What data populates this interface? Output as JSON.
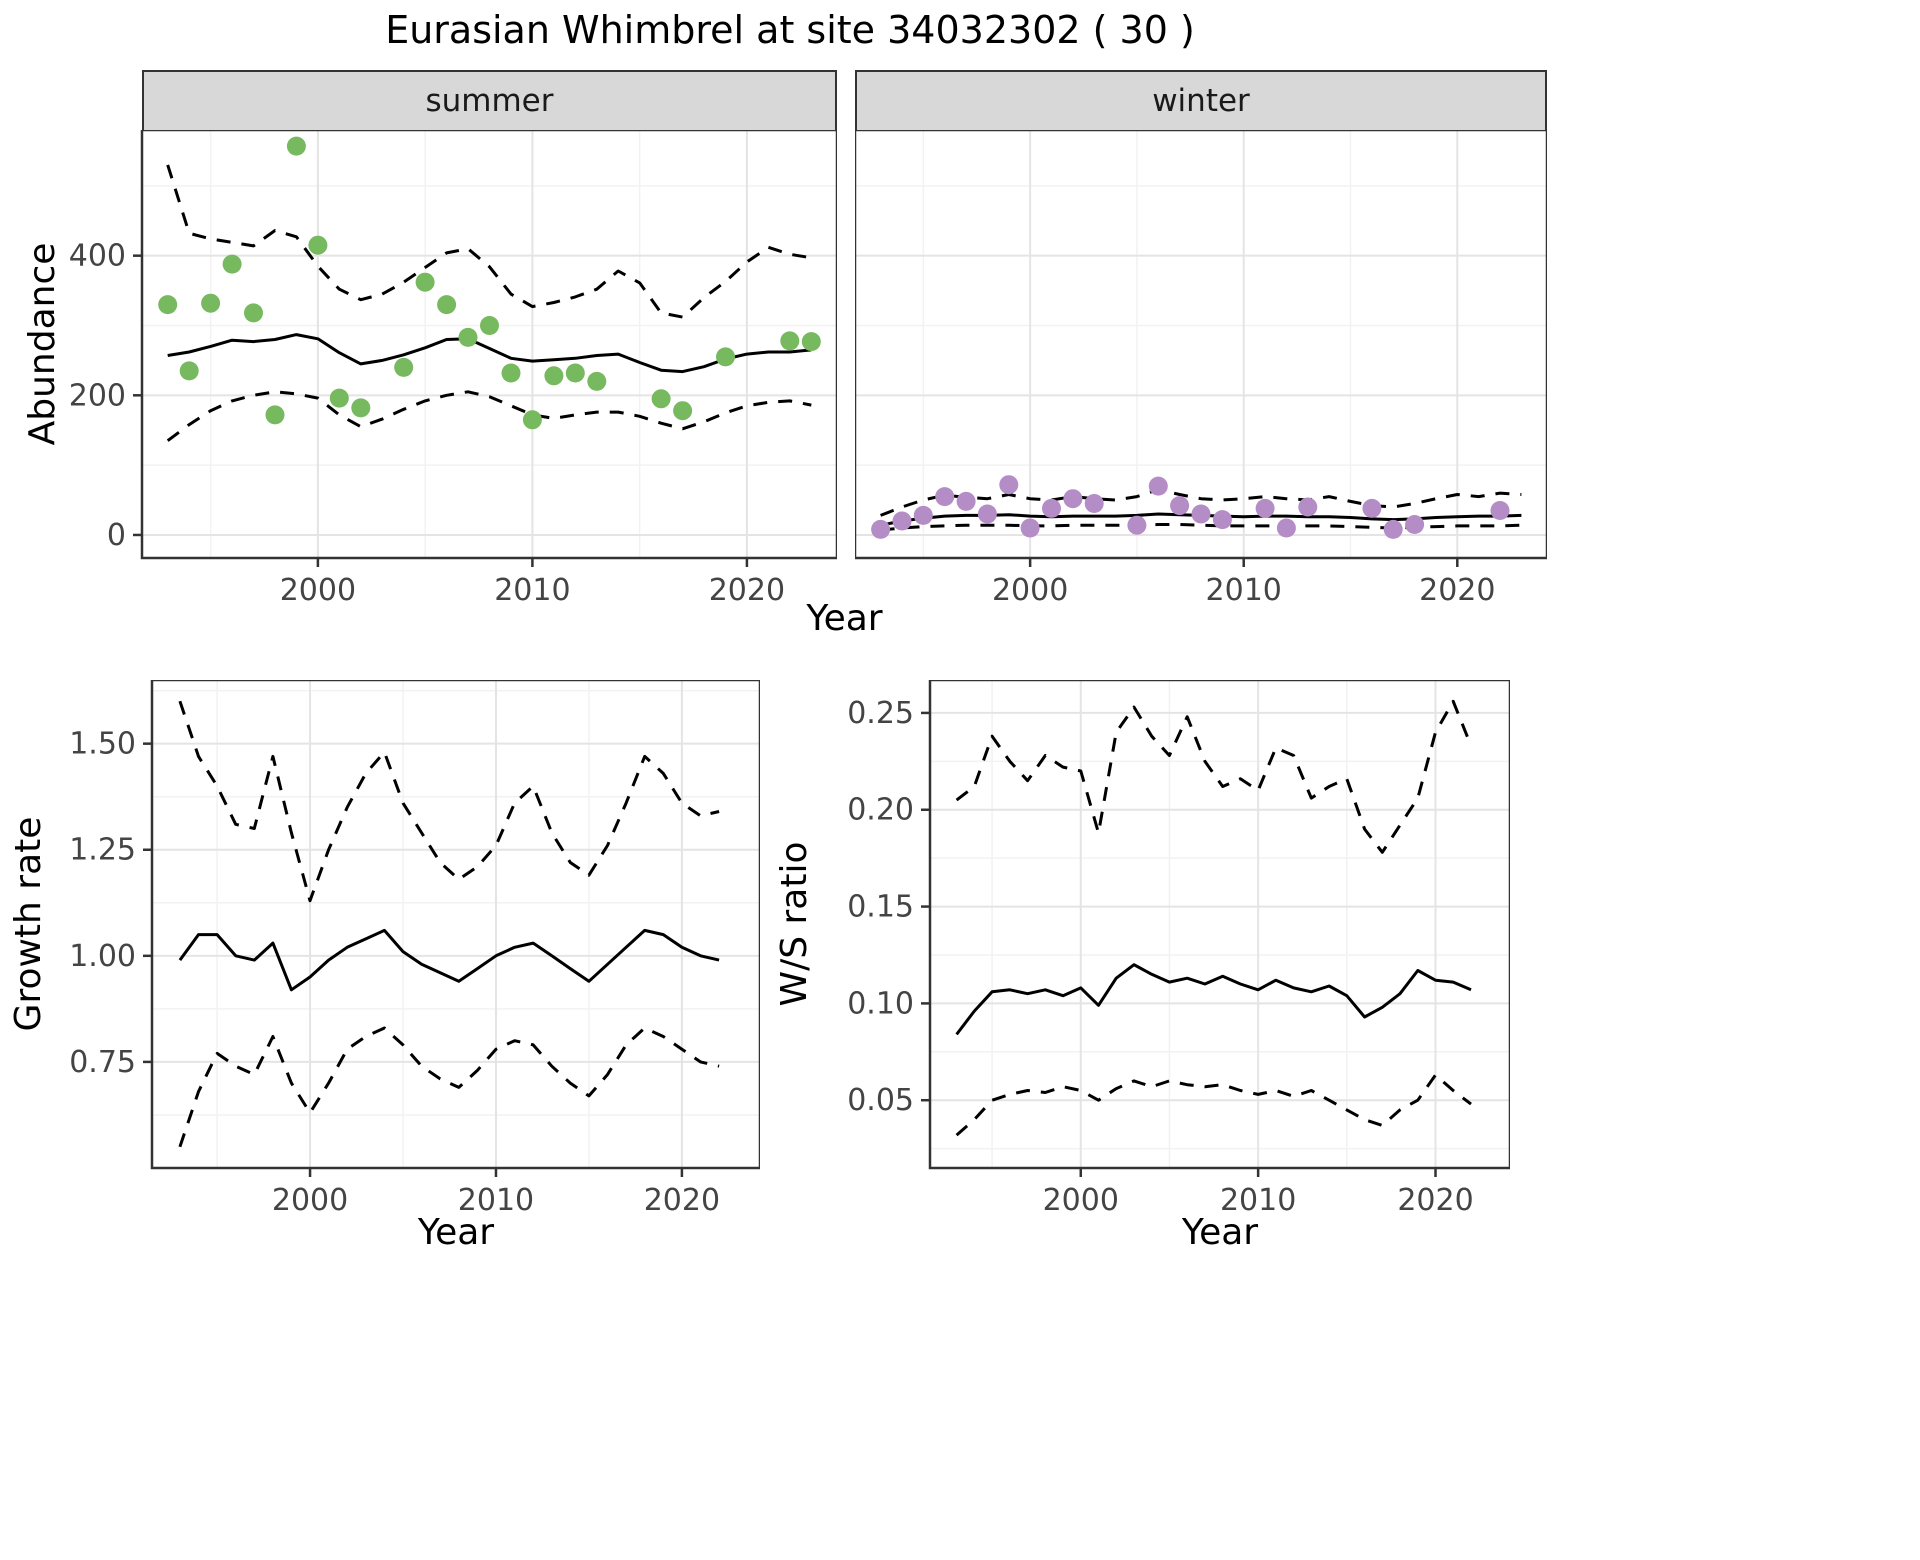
{
  "title": "Eurasian Whimbrel at site 34032302 ( 30 )",
  "colors": {
    "summer_points": "#77b95e",
    "winter_points": "#b48cc6",
    "trend_line": "#000000",
    "ci_line": "#000000",
    "strip_bg": "#d8d8d8",
    "grid_major": "#e4e4e4",
    "grid_minor": "#f2f2f2",
    "panel_border": "#333333",
    "axis_text": "#444444"
  },
  "chart_data": [
    {
      "id": "abundance-summer",
      "type": "line",
      "facet_label": "summer",
      "ylabel": "Abundance",
      "xlabel": "Year",
      "xlim": [
        1991.8,
        2024.2
      ],
      "ylim": [
        -33,
        580
      ],
      "xticks": [
        2000,
        2010,
        2020
      ],
      "xtick_labels": [
        "2000",
        "2010",
        "2020"
      ],
      "yticks": [
        0,
        200,
        400
      ],
      "ytick_labels": [
        "0",
        "200",
        "400"
      ],
      "points": {
        "name": "summer-observed",
        "color": "#77b95e",
        "x": [
          1993,
          1994,
          1995,
          1996,
          1997,
          1998,
          1999,
          2000,
          2001,
          2002,
          2004,
          2005,
          2006,
          2007,
          2008,
          2009,
          2010,
          2011,
          2012,
          2013,
          2016,
          2017,
          2019,
          2022,
          2023
        ],
        "y": [
          330,
          235,
          332,
          388,
          318,
          172,
          557,
          415,
          196,
          182,
          240,
          362,
          330,
          283,
          300,
          232,
          165,
          228,
          232,
          220,
          195,
          178,
          255,
          278,
          277
        ]
      },
      "series": [
        {
          "name": "trend",
          "dash": false,
          "x_start": 1993,
          "values": [
            257,
            262,
            270,
            279,
            277,
            280,
            287,
            281,
            261,
            245,
            250,
            258,
            268,
            280,
            281,
            267,
            253,
            249,
            251,
            253,
            257,
            259,
            247,
            236,
            234,
            241,
            252,
            259,
            262,
            262,
            265
          ]
        },
        {
          "name": "ci-upper",
          "dash": true,
          "x_start": 1993,
          "values": [
            530,
            432,
            424,
            419,
            414,
            436,
            427,
            385,
            352,
            337,
            345,
            362,
            383,
            404,
            410,
            384,
            345,
            327,
            333,
            341,
            352,
            378,
            361,
            318,
            312,
            340,
            363,
            391,
            412,
            402,
            397
          ]
        },
        {
          "name": "ci-lower",
          "dash": true,
          "x_start": 1993,
          "values": [
            135,
            158,
            178,
            192,
            200,
            205,
            202,
            196,
            172,
            155,
            166,
            180,
            192,
            200,
            205,
            198,
            185,
            172,
            167,
            172,
            176,
            176,
            170,
            160,
            152,
            162,
            175,
            185,
            190,
            192,
            186
          ]
        }
      ]
    },
    {
      "id": "abundance-winter",
      "type": "line",
      "facet_label": "winter",
      "xlim": [
        1991.8,
        2024.2
      ],
      "ylim": [
        -33,
        580
      ],
      "xticks": [
        2000,
        2010,
        2020
      ],
      "xtick_labels": [
        "2000",
        "2010",
        "2020"
      ],
      "yticks": [
        0,
        200,
        400
      ],
      "ytick_labels": [],
      "points": {
        "name": "winter-observed",
        "color": "#b48cc6",
        "x": [
          1993,
          1994,
          1995,
          1996,
          1997,
          1998,
          1999,
          2000,
          2001,
          2002,
          2003,
          2005,
          2006,
          2007,
          2008,
          2009,
          2011,
          2012,
          2013,
          2016,
          2017,
          2018,
          2022
        ],
        "y": [
          8,
          20,
          28,
          55,
          48,
          30,
          72,
          10,
          38,
          52,
          45,
          14,
          70,
          42,
          30,
          22,
          38,
          10,
          40,
          38,
          8,
          15,
          35
        ]
      },
      "series": [
        {
          "name": "trend",
          "dash": false,
          "x_start": 1993,
          "values": [
            14,
            20,
            24,
            27,
            28,
            28,
            29,
            27,
            26,
            27,
            27,
            27,
            28,
            30,
            29,
            28,
            27,
            26,
            27,
            27,
            26,
            26,
            25,
            23,
            22,
            23,
            25,
            26,
            27,
            27,
            28
          ]
        },
        {
          "name": "ci-upper",
          "dash": true,
          "x_start": 1993,
          "values": [
            28,
            40,
            50,
            57,
            54,
            52,
            58,
            52,
            50,
            55,
            52,
            50,
            55,
            65,
            58,
            52,
            50,
            52,
            55,
            52,
            50,
            55,
            48,
            42,
            40,
            45,
            52,
            58,
            55,
            60,
            58
          ]
        },
        {
          "name": "ci-lower",
          "dash": true,
          "x_start": 1993,
          "values": [
            7,
            10,
            12,
            13,
            14,
            14,
            14,
            13,
            13,
            14,
            14,
            14,
            14,
            15,
            15,
            14,
            13,
            13,
            13,
            13,
            13,
            13,
            12,
            11,
            10,
            11,
            12,
            13,
            13,
            13,
            14
          ]
        }
      ]
    },
    {
      "id": "growth-rate",
      "type": "line",
      "ylabel": "Growth rate",
      "xlabel": "Year",
      "xlim": [
        1991.5,
        2024.2
      ],
      "ylim": [
        0.5,
        1.65
      ],
      "xticks": [
        2000,
        2010,
        2020
      ],
      "xtick_labels": [
        "2000",
        "2010",
        "2020"
      ],
      "yticks": [
        0.75,
        1.0,
        1.25,
        1.5
      ],
      "ytick_labels": [
        "0.75",
        "1.00",
        "1.25",
        "1.50"
      ],
      "series": [
        {
          "name": "trend",
          "dash": false,
          "x_start": 1993,
          "values": [
            0.99,
            1.05,
            1.05,
            1.0,
            0.99,
            1.03,
            0.92,
            0.95,
            0.99,
            1.02,
            1.04,
            1.06,
            1.01,
            0.98,
            0.96,
            0.94,
            0.97,
            1.0,
            1.02,
            1.03,
            1.0,
            0.97,
            0.94,
            0.98,
            1.02,
            1.06,
            1.05,
            1.02,
            1.0,
            0.99
          ]
        },
        {
          "name": "ci-upper",
          "dash": true,
          "x_start": 1993,
          "values": [
            1.6,
            1.47,
            1.4,
            1.31,
            1.3,
            1.47,
            1.29,
            1.13,
            1.25,
            1.35,
            1.43,
            1.48,
            1.36,
            1.29,
            1.22,
            1.18,
            1.21,
            1.26,
            1.36,
            1.4,
            1.29,
            1.22,
            1.19,
            1.26,
            1.36,
            1.47,
            1.43,
            1.36,
            1.33,
            1.34
          ]
        },
        {
          "name": "ci-lower",
          "dash": true,
          "x_start": 1993,
          "values": [
            0.55,
            0.68,
            0.77,
            0.74,
            0.72,
            0.81,
            0.7,
            0.63,
            0.7,
            0.78,
            0.81,
            0.83,
            0.79,
            0.74,
            0.71,
            0.69,
            0.73,
            0.78,
            0.8,
            0.79,
            0.74,
            0.7,
            0.67,
            0.72,
            0.79,
            0.83,
            0.81,
            0.78,
            0.75,
            0.74
          ]
        }
      ]
    },
    {
      "id": "ws-ratio",
      "type": "line",
      "ylabel": "W/S ratio",
      "xlabel": "Year",
      "xlim": [
        1991.5,
        2024.2
      ],
      "ylim": [
        0.015,
        0.267
      ],
      "xticks": [
        2000,
        2010,
        2020
      ],
      "xtick_labels": [
        "2000",
        "2010",
        "2020"
      ],
      "yticks": [
        0.05,
        0.1,
        0.15,
        0.2,
        0.25
      ],
      "ytick_labels": [
        "0.05",
        "0.10",
        "0.15",
        "0.20",
        "0.25"
      ],
      "series": [
        {
          "name": "trend",
          "dash": false,
          "x_start": 1993,
          "values": [
            0.084,
            0.096,
            0.106,
            0.107,
            0.105,
            0.107,
            0.104,
            0.108,
            0.099,
            0.113,
            0.12,
            0.115,
            0.111,
            0.113,
            0.11,
            0.114,
            0.11,
            0.107,
            0.112,
            0.108,
            0.106,
            0.109,
            0.104,
            0.093,
            0.098,
            0.105,
            0.117,
            0.112,
            0.111,
            0.107
          ]
        },
        {
          "name": "ci-upper",
          "dash": true,
          "x_start": 1993,
          "values": [
            0.205,
            0.212,
            0.238,
            0.225,
            0.215,
            0.228,
            0.222,
            0.22,
            0.188,
            0.24,
            0.253,
            0.238,
            0.228,
            0.248,
            0.225,
            0.212,
            0.216,
            0.21,
            0.232,
            0.228,
            0.206,
            0.212,
            0.216,
            0.19,
            0.178,
            0.192,
            0.206,
            0.24,
            0.256,
            0.233
          ]
        },
        {
          "name": "ci-lower",
          "dash": true,
          "x_start": 1993,
          "values": [
            0.032,
            0.04,
            0.05,
            0.053,
            0.055,
            0.054,
            0.057,
            0.055,
            0.05,
            0.056,
            0.06,
            0.057,
            0.06,
            0.058,
            0.057,
            0.058,
            0.055,
            0.053,
            0.055,
            0.052,
            0.055,
            0.05,
            0.045,
            0.04,
            0.037,
            0.045,
            0.05,
            0.063,
            0.055,
            0.048
          ]
        }
      ]
    }
  ]
}
